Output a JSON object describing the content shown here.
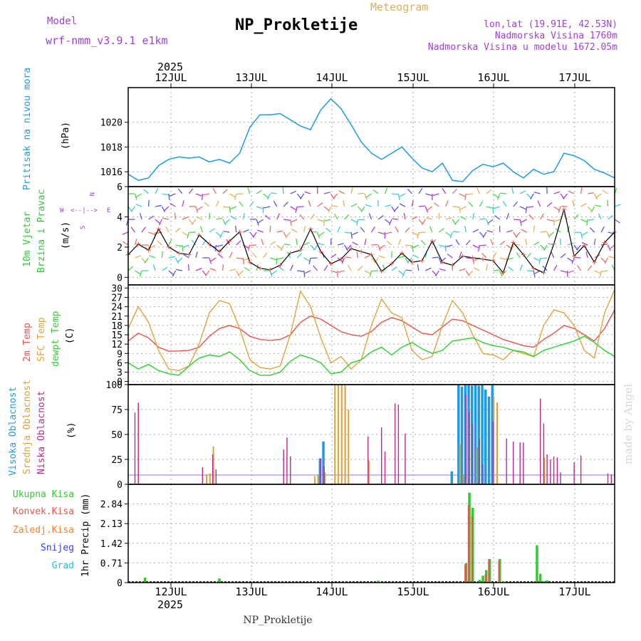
{
  "header": {
    "model_label": "Model",
    "model_name": "wrf-nmm_v3.9.1 e1km",
    "station_title": "NP_Prokletije",
    "product": "Meteogram",
    "lonlat": "lon,lat (19.91E, 42.53N)",
    "altitude": "Nadmorska Visina 1760m",
    "model_altitude": "Nadmorska Visina u modelu 1672.05m",
    "footer": "NP_Prokletije",
    "watermark": "made by Angel"
  },
  "time_axis": {
    "year": "2025",
    "days": [
      "12JUL",
      "13JUL",
      "14JUL",
      "15JUL",
      "16JUL",
      "17JUL"
    ]
  },
  "colors": {
    "pressure": "#1e9be6",
    "temp2m": "#e8554b",
    "sfc": "#e0a53c",
    "dew": "#2ed12e",
    "high_cloud": "#1e9be6",
    "mid_cloud": "#d9a23a",
    "low_cloud": "#c0288c",
    "total_precip": "#2ecc2e",
    "conv_precip": "#e8554b",
    "frozen": "#ff7f27",
    "snow": "#3c3ce6",
    "hail": "#22c4c4",
    "frame": "#000000",
    "grid": "#aaaaaa"
  },
  "panels": {
    "pressure": {
      "label1": "Pritisak na nivou mora",
      "unit": "(hPa)",
      "ticks": [
        "1016",
        "1018",
        "1020"
      ]
    },
    "wind": {
      "label1": "10m Vjetar",
      "label2": "Brzina i Pravac",
      "unit": "(m/s)",
      "ticks": [
        "0",
        "2",
        "4",
        "6"
      ],
      "compass": {
        "n": "N",
        "w": "W",
        "e": "E",
        "s": "S"
      }
    },
    "temp": {
      "label1": "2m Temp",
      "label2": "SFC Temp",
      "label3": "dewpt Temp",
      "unit": "(C)",
      "ticks": [
        "0",
        "3",
        "6",
        "9",
        "12",
        "15",
        "18",
        "21",
        "24",
        "27",
        "30"
      ]
    },
    "cloud": {
      "label1": "Visoka Oblacnost",
      "label2": "Srednja Oblacnost",
      "label3": "Niska Oblacnost",
      "unit": "(%)",
      "ticks": [
        "0",
        "25",
        "50",
        "75",
        "100"
      ]
    },
    "precip": {
      "legend": [
        "Ukupna Kisa",
        "Konvek.Kisa",
        "Zaledj.Kisa",
        "Snijeg",
        "Grad"
      ],
      "unit": "1hr Precip (mm)",
      "ticks": [
        "0",
        "0.71",
        "1.42",
        "2.13",
        "2.84"
      ]
    }
  },
  "chart_data": [
    {
      "type": "line",
      "title": "Pritisak na nivou mora",
      "ylabel": "(hPa)",
      "ylim": [
        1014.8,
        1022.8
      ],
      "x_unit": "hours from 11JUL 12Z",
      "grid": true,
      "series": [
        {
          "name": "Pritisak na nivou mora",
          "x": [
            0,
            3,
            6,
            9,
            12,
            15,
            18,
            21,
            24,
            27,
            30,
            33,
            36,
            39,
            42,
            45,
            48,
            51,
            54,
            57,
            60,
            63,
            66,
            69,
            72,
            75,
            78,
            81,
            84,
            87,
            90,
            93,
            96,
            99,
            102,
            105,
            108,
            111,
            114,
            117,
            120,
            123,
            126,
            129,
            132,
            135,
            138,
            141,
            144
          ],
          "values": [
            1015.8,
            1015.3,
            1015.5,
            1016.5,
            1017.0,
            1017.2,
            1017.1,
            1017.2,
            1016.8,
            1017.0,
            1016.7,
            1017.5,
            1019.6,
            1020.6,
            1020.6,
            1020.7,
            1020.2,
            1019.7,
            1019.4,
            1021.0,
            1021.9,
            1021.1,
            1019.8,
            1018.4,
            1017.5,
            1017.0,
            1017.5,
            1018.0,
            1017.1,
            1016.3,
            1016.0,
            1016.7,
            1015.3,
            1015.2,
            1016.1,
            1016.6,
            1016.4,
            1016.7,
            1016.0,
            1015.5,
            1016.2,
            1015.8,
            1016.0,
            1017.5,
            1017.3,
            1016.9,
            1016.2,
            1015.9,
            1015.5
          ]
        }
      ]
    },
    {
      "type": "line",
      "title": "10m Vjetar Brzina i Pravac",
      "ylabel": "(m/s)",
      "ylim": [
        -0.5,
        6
      ],
      "x_unit": "hours from 11JUL 12Z",
      "grid": true,
      "series": [
        {
          "name": "10m Vjetar",
          "x": [
            0,
            3,
            6,
            9,
            12,
            15,
            18,
            21,
            24,
            27,
            30,
            33,
            36,
            39,
            42,
            45,
            48,
            51,
            54,
            57,
            60,
            63,
            66,
            69,
            72,
            75,
            78,
            81,
            84,
            87,
            90,
            93,
            96,
            99,
            102,
            105,
            108,
            111,
            114,
            117,
            120,
            123,
            126,
            129,
            132,
            135,
            138,
            141,
            144
          ],
          "values": [
            1.5,
            2.2,
            1.8,
            3.2,
            2.0,
            1.6,
            1.5,
            2.8,
            2.2,
            1.7,
            2.4,
            3.0,
            1.0,
            0.6,
            0.5,
            0.8,
            1.6,
            1.8,
            3.2,
            1.7,
            0.9,
            1.2,
            1.9,
            1.7,
            1.5,
            0.4,
            0.9,
            1.6,
            1.0,
            1.1,
            2.4,
            1.0,
            0.8,
            1.4,
            1.3,
            1.2,
            1.1,
            0.3,
            2.3,
            1.5,
            0.6,
            0.3,
            2.2,
            4.5,
            1.4,
            2.1,
            1.0,
            2.3,
            3.0
          ]
        }
      ]
    },
    {
      "type": "line",
      "title": "2m Temp / SFC Temp / dewpt Temp",
      "ylabel": "(C)",
      "ylim": [
        -1,
        31
      ],
      "x_unit": "hours from 11JUL 12Z",
      "grid": true,
      "series": [
        {
          "name": "2m Temp",
          "x": [
            0,
            3,
            6,
            9,
            12,
            15,
            18,
            21,
            24,
            27,
            30,
            33,
            36,
            39,
            42,
            45,
            48,
            51,
            54,
            57,
            60,
            63,
            66,
            69,
            72,
            75,
            78,
            81,
            84,
            87,
            90,
            93,
            96,
            99,
            102,
            105,
            108,
            111,
            114,
            117,
            120,
            123,
            126,
            129,
            132,
            135,
            138,
            141,
            144
          ],
          "values": [
            13.0,
            15.5,
            14.0,
            11.0,
            9.7,
            9.8,
            10.0,
            11.0,
            14.5,
            17.0,
            18.0,
            17.0,
            14.5,
            13.5,
            13.2,
            13.5,
            15.0,
            19.0,
            21.0,
            20.0,
            18.0,
            16.0,
            15.0,
            14.5,
            16.0,
            19.0,
            20.5,
            19.5,
            17.5,
            15.5,
            15.0,
            17.5,
            20.0,
            19.5,
            18.0,
            16.5,
            15.0,
            13.5,
            12.5,
            11.5,
            11.0,
            13.5,
            15.5,
            18.0,
            17.0,
            15.0,
            13.0,
            17.0,
            23.0
          ]
        },
        {
          "name": "SFC Temp",
          "x": [
            0,
            3,
            6,
            9,
            12,
            15,
            18,
            21,
            24,
            27,
            30,
            33,
            36,
            39,
            42,
            45,
            48,
            51,
            54,
            57,
            60,
            63,
            66,
            69,
            72,
            75,
            78,
            81,
            84,
            87,
            90,
            93,
            96,
            99,
            102,
            105,
            108,
            111,
            114,
            117,
            120,
            123,
            126,
            129,
            132,
            135,
            138,
            141,
            144
          ],
          "values": [
            17.0,
            24.0,
            19.0,
            10.0,
            4.0,
            3.5,
            5.0,
            12.0,
            22.0,
            26.0,
            25.0,
            17.0,
            7.0,
            4.5,
            4.0,
            5.0,
            15.0,
            29.0,
            24.0,
            14.0,
            6.0,
            8.0,
            4.0,
            7.0,
            18.0,
            26.5,
            22.0,
            20.5,
            10.0,
            7.0,
            8.0,
            18.0,
            26.0,
            22.0,
            15.0,
            9.0,
            8.5,
            7.0,
            10.0,
            9.0,
            8.0,
            18.0,
            23.0,
            22.0,
            18.0,
            10.0,
            7.5,
            22.0,
            29.5
          ]
        },
        {
          "name": "dewpt Temp",
          "x": [
            0,
            3,
            6,
            9,
            12,
            15,
            18,
            21,
            24,
            27,
            30,
            33,
            36,
            39,
            42,
            45,
            48,
            51,
            54,
            57,
            60,
            63,
            66,
            69,
            72,
            75,
            78,
            81,
            84,
            87,
            90,
            93,
            96,
            99,
            102,
            105,
            108,
            111,
            114,
            117,
            120,
            123,
            126,
            129,
            132,
            135,
            138,
            141,
            144
          ],
          "values": [
            6.0,
            4.0,
            5.5,
            3.5,
            2.5,
            2.0,
            5.0,
            7.5,
            8.5,
            8.0,
            9.5,
            7.0,
            3.5,
            2.0,
            2.0,
            3.0,
            6.5,
            8.5,
            7.5,
            6.0,
            2.5,
            3.0,
            6.0,
            7.0,
            9.5,
            11.0,
            8.5,
            11.0,
            12.5,
            10.5,
            9.0,
            10.0,
            13.0,
            13.5,
            14.0,
            12.5,
            11.5,
            11.0,
            10.0,
            9.5,
            8.0,
            10.0,
            11.0,
            12.0,
            13.0,
            14.5,
            12.5,
            10.0,
            8.0
          ]
        }
      ]
    },
    {
      "type": "bar",
      "title": "Oblacnost",
      "ylabel": "(%)",
      "ylim": [
        0,
        100
      ],
      "x_unit": "hours from 11JUL 12Z",
      "grid": true,
      "series": [
        {
          "name": "Visoka Oblacnost",
          "x": [
            57,
            58,
            96,
            98,
            99,
            100,
            101,
            102,
            103,
            104,
            105,
            106,
            107,
            108,
            120,
            125
          ],
          "values": [
            26,
            43,
            13,
            100,
            98,
            100,
            100,
            99,
            100,
            99,
            100,
            95,
            88,
            100,
            0,
            0
          ]
        },
        {
          "name": "Srednja Oblacnost",
          "x": [
            23,
            24,
            25,
            55,
            56,
            58,
            61,
            62,
            63,
            64,
            65,
            71,
            81,
            98,
            99,
            103,
            108,
            109,
            123
          ],
          "values": [
            10,
            11,
            38,
            8,
            10,
            12,
            100,
            100,
            100,
            100,
            75,
            24,
            0,
            40,
            10,
            37,
            88,
            82,
            27
          ]
        },
        {
          "name": "Niska Oblacnost",
          "x": [
            2,
            3,
            22,
            25,
            26,
            46,
            47,
            48,
            57,
            58,
            71,
            75,
            76,
            79,
            80,
            82,
            100,
            101,
            102,
            104,
            105,
            108,
            112,
            114,
            116,
            117,
            122,
            123,
            124,
            125,
            126,
            127,
            128,
            132,
            134,
            142,
            143
          ],
          "values": [
            72,
            82,
            17,
            30,
            15,
            35,
            47,
            28,
            26,
            18,
            48,
            57,
            33,
            81,
            80,
            51,
            90,
            73,
            61,
            45,
            20,
            63,
            46,
            43,
            42,
            42,
            86,
            61,
            30,
            25,
            28,
            27,
            12,
            22,
            29,
            11,
            10
          ]
        }
      ]
    },
    {
      "type": "bar",
      "title": "1hr Precip",
      "ylabel": "1hr Precip (mm)",
      "ylim": [
        0,
        3.55
      ],
      "x_unit": "hours from 11JUL 12Z",
      "grid": true,
      "series": [
        {
          "name": "Ukupna Kisa",
          "x": [
            5,
            27,
            74,
            100,
            101,
            102,
            104,
            105,
            106,
            107,
            110,
            111,
            120,
            121,
            122,
            123,
            124
          ],
          "values": [
            0.18,
            0.15,
            0.07,
            0.7,
            3.25,
            2.7,
            0.1,
            0.25,
            0.45,
            0.85,
            0.85,
            0.05,
            0.03,
            1.35,
            0.32,
            0.05,
            0.08
          ]
        },
        {
          "name": "Konvek.Kisa",
          "x": [
            100,
            101,
            102,
            106,
            107,
            110,
            121
          ],
          "values": [
            0.65,
            2.8,
            2.4,
            0.3,
            0.85,
            0.8,
            0.05
          ]
        },
        {
          "name": "Zaledj.Kisa",
          "x": [],
          "values": []
        },
        {
          "name": "Snijeg",
          "x": [],
          "values": []
        },
        {
          "name": "Grad",
          "x": [],
          "values": []
        }
      ]
    }
  ]
}
